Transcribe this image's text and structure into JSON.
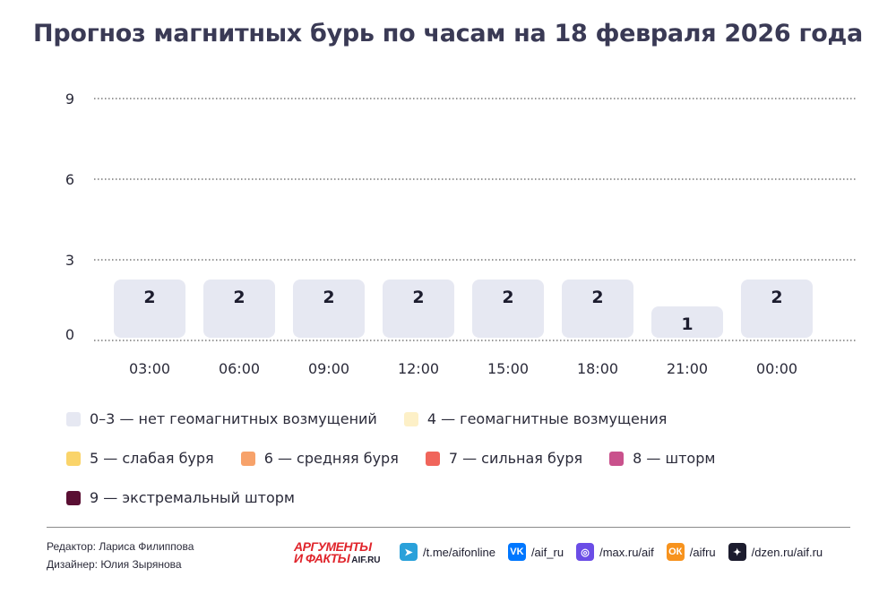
{
  "title": "Прогноз магнитных бурь по часам на 18 февраля 2026 года",
  "chart_data": {
    "type": "bar",
    "title": "Прогноз магнитных бурь по часам на 18 февраля 2026 года",
    "categories": [
      "03:00",
      "06:00",
      "09:00",
      "12:00",
      "15:00",
      "18:00",
      "21:00",
      "00:00"
    ],
    "values": [
      2,
      2,
      2,
      2,
      2,
      2,
      1,
      2
    ],
    "ylim": [
      0,
      9
    ],
    "yticks": [
      0,
      3,
      6,
      9
    ],
    "grid": true,
    "grid_style": "dotted",
    "bar_color": "#e6e8f2",
    "xlabel": "",
    "ylabel": ""
  },
  "legend": [
    [
      {
        "label": "0–3 — нет геомагнитных возмущений",
        "color": "#e6e8f2"
      },
      {
        "label": "4 — геомагнитные возмущения",
        "color": "#fdf0c7"
      }
    ],
    [
      {
        "label": "5 — слабая буря",
        "color": "#fad46a"
      },
      {
        "label": "6 — средняя буря",
        "color": "#f7a26a"
      },
      {
        "label": "7 — сильная буря",
        "color": "#f0655b"
      },
      {
        "label": "8 — шторм",
        "color": "#c9518c"
      }
    ],
    [
      {
        "label": "9 — экстремальный шторм",
        "color": "#5a0f33"
      }
    ]
  ],
  "credits": {
    "editor": "Редактор: Лариса Филиппова",
    "designer": "Дизайнер: Юлия Зырянова"
  },
  "brand": {
    "top": "АРГУМЕНТЫ",
    "bottom": "И ФАКТЫ",
    "domain": "AIF.RU"
  },
  "socials": [
    {
      "icon": "telegram-icon",
      "text": "/t.me/aifonline",
      "color": "#2aa1da",
      "glyph": "➤"
    },
    {
      "icon": "vk-icon",
      "text": "/aif_ru",
      "color": "#0077ff",
      "glyph": "VK"
    },
    {
      "icon": "max-icon",
      "text": "/max.ru/aif",
      "color": "#6b4de6",
      "glyph": "◎"
    },
    {
      "icon": "odnoklassniki-icon",
      "text": "/aifru",
      "color": "#f7931e",
      "glyph": "ОК"
    },
    {
      "icon": "dzen-icon",
      "text": "/dzen.ru/aif.ru",
      "color": "#1c1c2e",
      "glyph": "✦"
    }
  ]
}
